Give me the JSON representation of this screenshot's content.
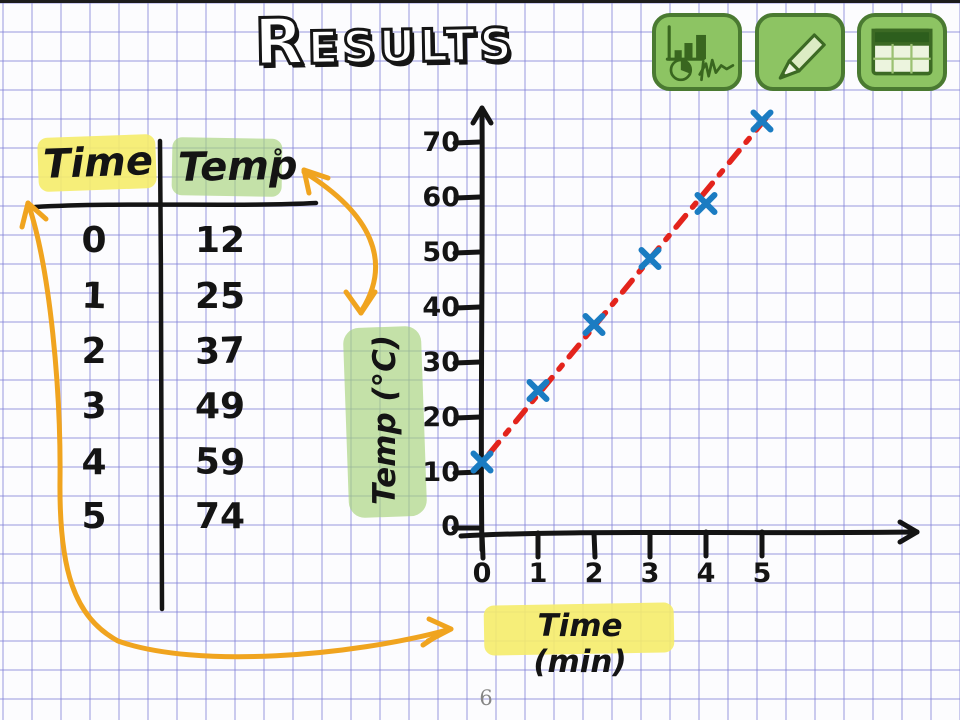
{
  "page": {
    "title": "Results",
    "page_number": "6"
  },
  "toolbar": {
    "buttons": [
      {
        "icon": "charts-icon",
        "label": "charts"
      },
      {
        "icon": "pencil-icon",
        "label": "draw"
      },
      {
        "icon": "table-icon",
        "label": "table"
      }
    ]
  },
  "results_table": {
    "col1_header": "Time",
    "col2_header": "Temp",
    "degree_symbol": "°",
    "rows": [
      {
        "time": "0",
        "temp": "12"
      },
      {
        "time": "1",
        "temp": "25"
      },
      {
        "time": "2",
        "temp": "37"
      },
      {
        "time": "3",
        "temp": "49"
      },
      {
        "time": "4",
        "temp": "59"
      },
      {
        "time": "5",
        "temp": "74"
      }
    ]
  },
  "chart_data": {
    "type": "scatter",
    "x": [
      0,
      1,
      2,
      3,
      4,
      5
    ],
    "series": [
      {
        "name": "Temp",
        "values": [
          12,
          25,
          37,
          49,
          59,
          74
        ]
      }
    ],
    "title": "",
    "xlabel": "Time (min)",
    "ylabel": "Temp (°C)",
    "x_ticks": [
      "0",
      "1",
      "2",
      "3",
      "4",
      "5"
    ],
    "y_ticks": [
      "70",
      "60",
      "50",
      "40",
      "30",
      "20",
      "10",
      "0"
    ],
    "xlim": [
      0,
      5.5
    ],
    "ylim": [
      0,
      75
    ],
    "grid": false,
    "legend": "none",
    "marker": {
      "shape": "x",
      "color": "#1b7cc2"
    },
    "trendline": {
      "style": "dashed",
      "color": "#e3241c"
    }
  },
  "colors": {
    "button_green": "#8dc463",
    "button_border_green": "#4a7a31",
    "highlight_yellow": "#f5ec6a",
    "highlight_green": "#a6d37a",
    "arrow_orange": "#f0a41f",
    "marker_blue": "#1b7cc2",
    "trend_red": "#e3241c"
  }
}
